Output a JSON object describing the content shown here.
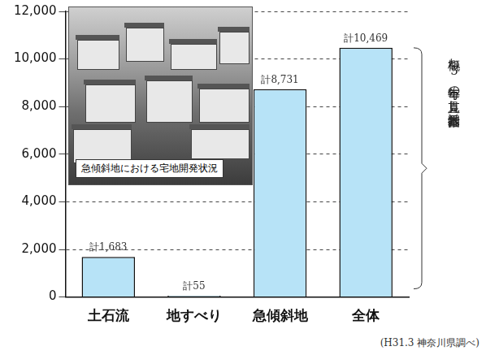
{
  "chart_data": {
    "type": "bar",
    "categories": [
      "土石流",
      "地すべり",
      "急傾斜地",
      "全体"
    ],
    "values": [
      1683,
      55,
      8731,
      10469
    ],
    "value_labels": [
      "計1,683",
      "計55",
      "計8,731",
      "計10,469"
    ],
    "data_labels": true,
    "color": "#b7e3f7",
    "ylim": [
      0,
      12000
    ],
    "yticks": [
      0,
      {
        "value": 2000,
        "label": "2,000"
      },
      {
        "value": 4000,
        "label": "4,000"
      },
      {
        "value": 6000,
        "label": "6,000"
      },
      {
        "value": 8000,
        "label": "8,000"
      },
      {
        "value": 10000,
        "label": "10,000"
      },
      {
        "value": 12000,
        "label": "12,000"
      }
    ],
    "grid": true,
    "photo_caption": "急傾斜地における宅地開発状況",
    "bracket_label": "概ね5年毎の見直し（国基本指針）",
    "source": "(H31.3 神奈川県調べ)"
  }
}
